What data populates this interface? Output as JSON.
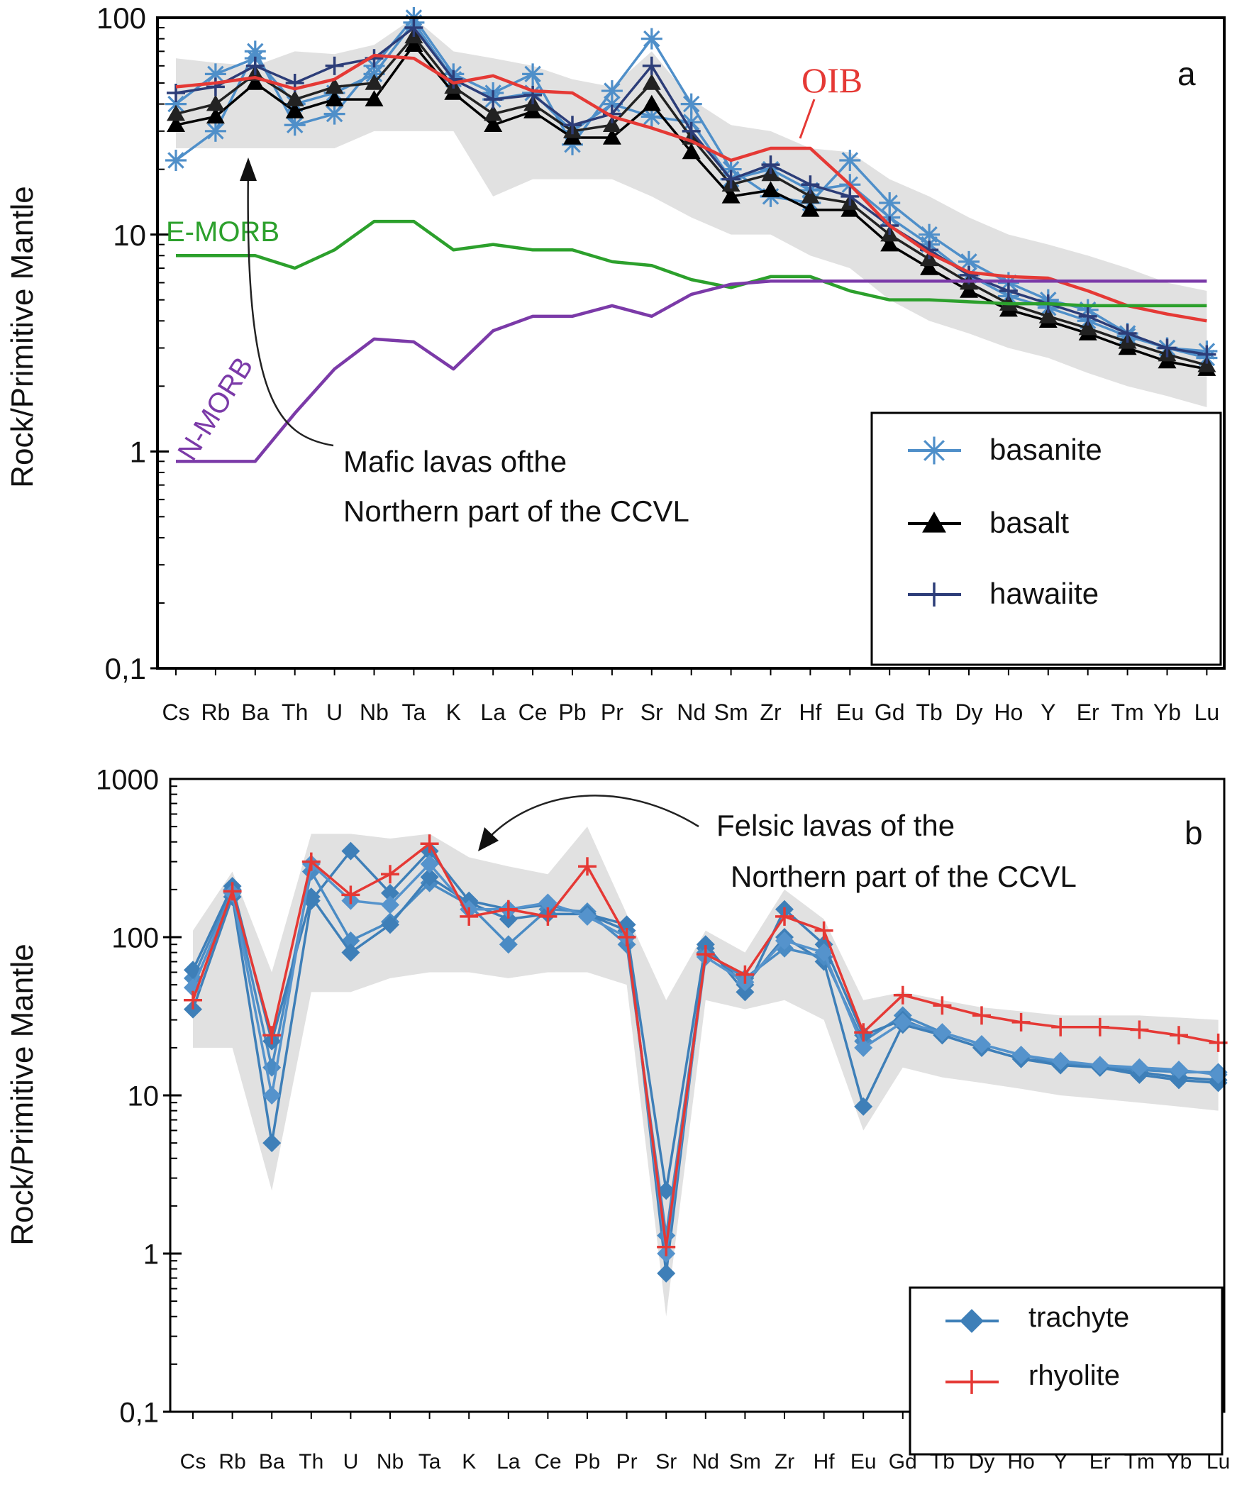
{
  "chart_data": [
    {
      "type": "line",
      "panel_label": "a",
      "ylabel": "Rock/Primitive Mantle",
      "yscale": "log",
      "ylim": [
        0.1,
        100
      ],
      "yticks": [
        "0,1",
        "1",
        "10",
        "100"
      ],
      "categories": [
        "Cs",
        "Rb",
        "Ba",
        "Th",
        "U",
        "Nb",
        "Ta",
        "K",
        "La",
        "Ce",
        "Pb",
        "Pr",
        "Sr",
        "Nd",
        "Sm",
        "Zr",
        "Hf",
        "Eu",
        "Gd",
        "Tb",
        "Dy",
        "Ho",
        "Y",
        "Er",
        "Tm",
        "Yb",
        "Lu"
      ],
      "envelope": {
        "upper": [
          65,
          62,
          60,
          70,
          68,
          75,
          100,
          70,
          65,
          60,
          52,
          48,
          70,
          42,
          32,
          30,
          25,
          24,
          18,
          15,
          12,
          10,
          9,
          8,
          7,
          6,
          5.5
        ],
        "lower": [
          25,
          25,
          25,
          25,
          25,
          30,
          30,
          30,
          15,
          18,
          18,
          18,
          15,
          12,
          10,
          10,
          8,
          7,
          5,
          4,
          3.5,
          3,
          2.7,
          2.3,
          2,
          1.8,
          1.6
        ]
      },
      "series": [
        {
          "name": "basanite",
          "color": "#4f8fc9",
          "marker": "asterisk",
          "values": [
            22,
            30,
            70,
            32,
            36,
            60,
            100,
            55,
            45,
            55,
            26,
            46,
            80,
            40,
            20,
            15,
            14,
            22,
            14,
            10,
            7.5,
            6,
            5,
            4.5,
            3.5,
            3,
            2.9
          ]
        },
        {
          "name": "basanite",
          "color": "#4f8fc9",
          "marker": "asterisk",
          "values": [
            40,
            55,
            65,
            40,
            45,
            55,
            95,
            52,
            42,
            45,
            30,
            40,
            35,
            33,
            18,
            20,
            16,
            17,
            12,
            9,
            6.5,
            5.2,
            4.6,
            4,
            3.4,
            3,
            2.7
          ]
        },
        {
          "name": "basalt",
          "color": "#000000",
          "marker": "triangle",
          "values": [
            32,
            35,
            50,
            37,
            42,
            42,
            75,
            45,
            32,
            37,
            28,
            28,
            40,
            24,
            15,
            16,
            13,
            13,
            9,
            7,
            5.5,
            4.5,
            4,
            3.5,
            3,
            2.6,
            2.4
          ]
        },
        {
          "name": "basalt",
          "color": "#222222",
          "marker": "triangle",
          "values": [
            36,
            40,
            55,
            42,
            48,
            50,
            82,
            48,
            36,
            40,
            30,
            32,
            50,
            28,
            17,
            19,
            15,
            14,
            10,
            7.7,
            6,
            4.8,
            4.2,
            3.7,
            3.2,
            2.8,
            2.5
          ]
        },
        {
          "name": "hawaiite",
          "color": "#2c3d78",
          "marker": "plus",
          "values": [
            45,
            48,
            60,
            50,
            60,
            65,
            90,
            52,
            42,
            44,
            32,
            36,
            60,
            30,
            18,
            21,
            17,
            15,
            11,
            8.5,
            6.5,
            5.5,
            4.8,
            4.2,
            3.5,
            3,
            2.8
          ]
        },
        {
          "name": "OIB",
          "color": "#e53935",
          "marker": "none",
          "values": [
            48,
            50,
            53,
            47,
            52,
            67,
            65,
            50,
            54,
            46,
            45,
            35,
            31,
            27,
            22,
            25,
            25,
            17,
            11,
            8.2,
            6.7,
            6.4,
            6.3,
            5.5,
            4.7,
            4.3,
            4
          ]
        },
        {
          "name": "E-MORB",
          "color": "#2ca02c",
          "marker": "none",
          "values": [
            8,
            8,
            8,
            7,
            8.5,
            11.5,
            11.5,
            8.5,
            9,
            8.5,
            8.5,
            7.5,
            7.2,
            6.2,
            5.7,
            6.4,
            6.4,
            5.5,
            5,
            5,
            4.9,
            4.8,
            4.8,
            4.7,
            4.7,
            4.7,
            4.7
          ]
        },
        {
          "name": "N-MORB",
          "color": "#7b3aa8",
          "marker": "none",
          "values": [
            0.9,
            0.9,
            0.9,
            1.5,
            2.4,
            3.3,
            3.2,
            2.4,
            3.6,
            4.2,
            4.2,
            4.7,
            4.2,
            5.3,
            5.9,
            6.1,
            6.1,
            6.1,
            6.1,
            6.1,
            6.1,
            6.1,
            6.1,
            6.1,
            6.1,
            6.1,
            6.1
          ]
        }
      ],
      "annotations": [
        {
          "text": "OIB",
          "color": "#e53935"
        },
        {
          "text": "E-MORB",
          "color": "#2ca02c"
        },
        {
          "text": "N-MORB",
          "color": "#7b3aa8"
        },
        {
          "text": "Mafic lavas ofthe",
          "color": "#111111"
        },
        {
          "text": "Northern part of the CCVL",
          "color": "#111111"
        }
      ],
      "legend": {
        "placement": "bottom-right",
        "entries": [
          "basanite",
          "basalt",
          "hawaiite"
        ]
      }
    },
    {
      "type": "line",
      "panel_label": "b",
      "ylabel": "Rock/Primitive Mantle",
      "yscale": "log",
      "ylim": [
        0.1,
        1000
      ],
      "yticks": [
        "0,1",
        "1",
        "10",
        "100",
        "1000"
      ],
      "categories": [
        "Cs",
        "Rb",
        "Ba",
        "Th",
        "U",
        "Nb",
        "Ta",
        "K",
        "La",
        "Ce",
        "Pb",
        "Pr",
        "Sr",
        "Nd",
        "Sm",
        "Zr",
        "Hf",
        "Eu",
        "Gd",
        "Tb",
        "Dy",
        "Ho",
        "Y",
        "Er",
        "Tm",
        "Yb",
        "Lu"
      ],
      "envelope": {
        "upper": [
          110,
          260,
          60,
          450,
          450,
          420,
          450,
          320,
          280,
          250,
          500,
          140,
          40,
          110,
          80,
          200,
          130,
          40,
          45,
          40,
          36,
          34,
          32,
          32,
          32,
          31,
          30
        ],
        "lower": [
          20,
          20,
          2.5,
          45,
          45,
          55,
          60,
          60,
          55,
          60,
          60,
          50,
          0.4,
          40,
          35,
          40,
          30,
          6,
          15,
          13,
          12,
          11,
          10,
          9.5,
          9,
          8.5,
          8
        ]
      },
      "series": [
        {
          "name": "trachyte",
          "color": "#3e7fb8",
          "marker": "diamond",
          "values": [
            35,
            180,
            5,
            170,
            350,
            190,
            350,
            170,
            150,
            160,
            140,
            120,
            0.75,
            85,
            50,
            100,
            70,
            8.5,
            28,
            24,
            20,
            17,
            16,
            15,
            14,
            13,
            12.5
          ]
        },
        {
          "name": "trachyte",
          "color": "#4a8bc4",
          "marker": "diamond",
          "values": [
            55,
            200,
            15,
            260,
            95,
            125,
            220,
            160,
            90,
            150,
            145,
            90,
            1.3,
            80,
            55,
            85,
            75,
            22,
            32,
            25,
            21,
            18,
            16,
            15.5,
            14.5,
            14,
            14
          ]
        },
        {
          "name": "trachyte",
          "color": "#3e7fb8",
          "marker": "diamond",
          "values": [
            62,
            210,
            22,
            180,
            80,
            120,
            240,
            165,
            130,
            140,
            140,
            110,
            2.5,
            90,
            45,
            150,
            90,
            24,
            30,
            24,
            20,
            17,
            15.5,
            15,
            13.5,
            12.5,
            12
          ]
        },
        {
          "name": "trachyte",
          "color": "#5593cc",
          "marker": "diamond",
          "values": [
            48,
            190,
            10,
            290,
            170,
            160,
            290,
            150,
            150,
            165,
            135,
            100,
            1.0,
            75,
            52,
            95,
            80,
            20,
            29,
            25,
            21,
            18,
            16.5,
            15.5,
            15,
            14.5,
            13.5
          ]
        },
        {
          "name": "rhyolite",
          "color": "#e53935",
          "marker": "plus",
          "values": [
            40,
            195,
            24,
            300,
            185,
            250,
            390,
            135,
            150,
            135,
            280,
            100,
            1.1,
            78,
            58,
            135,
            110,
            25,
            43,
            37,
            32,
            29,
            27,
            27,
            26,
            24,
            21.5
          ]
        }
      ],
      "annotations": [
        {
          "text": "Felsic lavas of the",
          "color": "#111111"
        },
        {
          "text": "Northern part of the CCVL",
          "color": "#111111"
        }
      ],
      "legend": {
        "placement": "bottom-right",
        "entries": [
          "trachyte",
          "rhyolite"
        ]
      }
    }
  ]
}
